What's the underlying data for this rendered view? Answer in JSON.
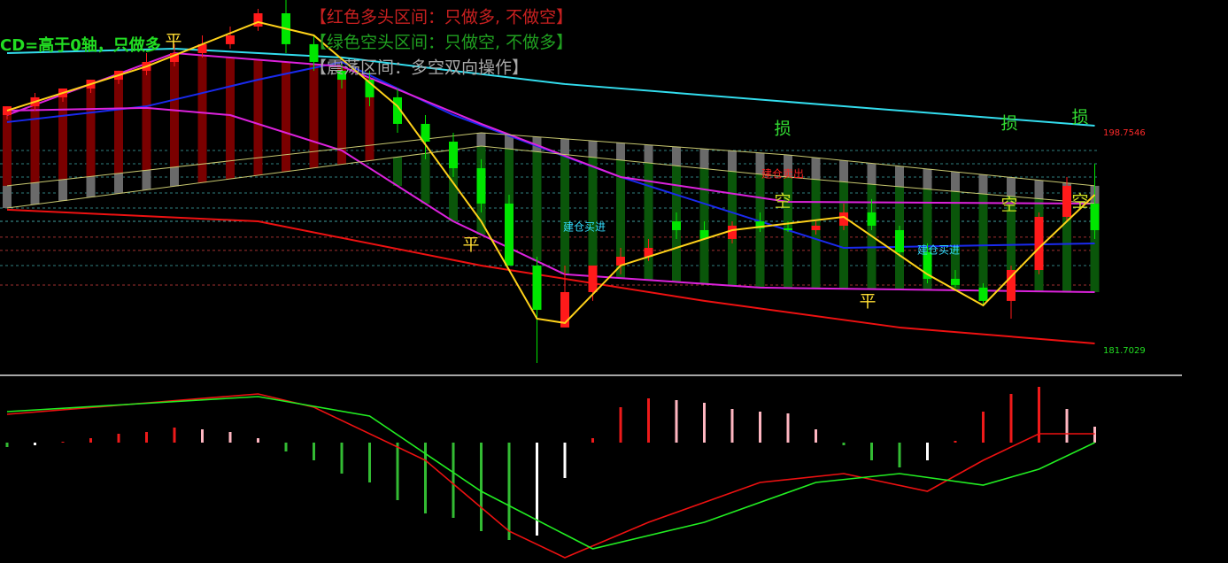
{
  "chart_data": [
    {
      "type": "candlestick",
      "notes": [
        "【红色多头区间：只做多, 不做空】",
        "【绿色空头区间：只做空, 不做多】",
        "【震荡区间：多空双向操作】"
      ],
      "note_colors": [
        "#c82020",
        "#20a020",
        "#a8a8a8"
      ],
      "side_text": "CD=高于0轴，只做多",
      "side_color": "#22dd22",
      "open": [
        200.14,
        200.83,
        201.53,
        202.22,
        202.91,
        203.61,
        204.3,
        204.99,
        205.69,
        207.07,
        208.11,
        205.69,
        203.61,
        202.91,
        201.53,
        199.45,
        198.06,
        195.98,
        193.21,
        188.36,
        183.51,
        186.28,
        188.36,
        189.05,
        191.82,
        191.13,
        190.44,
        191.82,
        191.27,
        191.13,
        191.48,
        192.52,
        191.13,
        189.4,
        187.32,
        186.63,
        185.59,
        188.01,
        192.17,
        193.21
      ],
      "high": [
        200.83,
        201.87,
        202.22,
        202.91,
        203.61,
        204.99,
        205.69,
        206.38,
        207.07,
        208.46,
        209.15,
        206.38,
        204.3,
        203.61,
        202.22,
        200.14,
        198.75,
        196.68,
        193.9,
        189.05,
        188.36,
        188.36,
        189.74,
        190.44,
        192.52,
        191.82,
        191.82,
        192.52,
        191.82,
        191.82,
        193.21,
        193.56,
        191.48,
        190.09,
        188.01,
        186.97,
        188.36,
        192.52,
        195.29,
        196.33
      ],
      "low": [
        199.79,
        200.49,
        201.18,
        201.87,
        202.57,
        203.26,
        203.95,
        204.65,
        205.34,
        206.73,
        204.99,
        203.61,
        202.22,
        200.83,
        198.75,
        196.68,
        195.29,
        192.52,
        188.36,
        180.73,
        183.51,
        185.59,
        187.67,
        188.71,
        190.44,
        190.44,
        190.09,
        190.99,
        190.99,
        190.78,
        191.13,
        191.13,
        189.05,
        186.97,
        186.63,
        185.24,
        184.2,
        187.67,
        191.82,
        190.44
      ],
      "close": [
        200.83,
        201.53,
        202.22,
        202.91,
        203.61,
        204.3,
        204.99,
        205.69,
        206.38,
        208.11,
        205.69,
        204.3,
        202.91,
        201.53,
        199.45,
        198.06,
        195.98,
        193.21,
        188.36,
        184.89,
        186.28,
        188.36,
        189.05,
        189.74,
        191.13,
        190.44,
        191.48,
        191.27,
        191.13,
        191.48,
        192.52,
        191.48,
        189.4,
        187.32,
        186.84,
        185.59,
        188.01,
        192.17,
        194.6,
        191.13
      ],
      "up_color": "#ff1a1a",
      "down_color": "#00e600",
      "ylim": [
        180.04,
        209.15
      ],
      "yticks": [
        198.7546,
        181.7029
      ],
      "ytick_colors": [
        "#ff2a2a",
        "#22dd22"
      ],
      "levels": [
        197.37,
        196.33,
        195.29,
        194.04,
        192.86,
        191.82,
        190.58,
        189.54,
        188.36,
        186.83
      ],
      "level_colors": [
        "#2f7f7f",
        "#2f7f7f",
        "#2f7f7f",
        "#2f7f7f",
        "#2f7f7f",
        "#3fa0a0",
        "#a03030",
        "#a03030",
        "#2f7f7f",
        "#a03030"
      ],
      "zone_colors": [
        "#7a0000",
        "#0a560a",
        "#6a6a6a"
      ],
      "lines": [
        {
          "color": "#33ddee",
          "x": [
            0,
            6,
            12,
            20,
            30,
            39
          ],
          "values": [
            204.99,
            205.34,
            204.65,
            202.57,
            200.83,
            199.31
          ]
        },
        {
          "color": "#ee1111",
          "x": [
            0,
            9,
            17,
            25,
            32,
            39
          ],
          "values": [
            192.73,
            191.82,
            188.36,
            185.59,
            183.51,
            182.26
          ]
        },
        {
          "color": "#1a2aee",
          "x": [
            0,
            5,
            9,
            12,
            16,
            22,
            27,
            30,
            39
          ],
          "values": [
            199.59,
            200.83,
            202.91,
            204.3,
            200.14,
            195.29,
            191.82,
            189.74,
            190.09
          ]
        },
        {
          "color": "#dd22dd",
          "x": [
            0,
            6,
            12,
            17,
            22,
            28,
            39
          ],
          "values": [
            200.14,
            204.99,
            203.95,
            199.45,
            195.29,
            193.35,
            193.21
          ]
        },
        {
          "color": "#dd22dd",
          "x": [
            0,
            5,
            8,
            12,
            16,
            20,
            27,
            39
          ],
          "values": [
            200.49,
            200.7,
            200.14,
            197.37,
            191.82,
            187.67,
            186.63,
            186.28
          ]
        },
        {
          "color": "#c8c870",
          "x": [
            0,
            17,
            28,
            39
          ],
          "values": [
            194.6,
            198.75,
            197.02,
            194.6
          ]
        },
        {
          "color": "#c8c870",
          "x": [
            0,
            17,
            28,
            39
          ],
          "values": [
            192.86,
            197.71,
            195.29,
            193.21
          ]
        },
        {
          "color": "#ffd21a",
          "x": [
            0,
            5,
            9,
            11,
            14,
            17,
            19,
            20,
            22,
            26,
            30,
            33,
            35,
            37,
            39
          ],
          "values": [
            200.49,
            203.95,
            207.42,
            206.38,
            200.83,
            191.82,
            184.2,
            183.86,
            188.36,
            191.13,
            192.17,
            187.67,
            185.24,
            189.74,
            193.9
          ]
        }
      ],
      "annotations": [
        {
          "text": "损",
          "color": "#33dd33"
        },
        {
          "text": "损",
          "color": "#33dd33"
        },
        {
          "text": "损",
          "color": "#33dd33"
        },
        {
          "text": "平",
          "color": "#ffdd33"
        },
        {
          "text": "平",
          "color": "#ffdd33"
        },
        {
          "text": "平",
          "color": "#ffdd33"
        },
        {
          "text": "空",
          "color": "#ccdd22"
        },
        {
          "text": "空",
          "color": "#ccdd22"
        },
        {
          "text": "空",
          "color": "#ccdd22"
        },
        {
          "text": "建仓买进",
          "color": "#33ddff"
        },
        {
          "text": "建仓买进",
          "color": "#33ddff"
        },
        {
          "text": "建仓卖出",
          "color": "#ff2222"
        }
      ]
    },
    {
      "type": "bar",
      "values": [
        -0.05,
        -0.03,
        0.01,
        0.05,
        0.1,
        0.12,
        0.17,
        0.15,
        0.12,
        0.05,
        -0.1,
        -0.2,
        -0.35,
        -0.45,
        -0.65,
        -0.8,
        -0.85,
        -1.0,
        -1.1,
        -1.05,
        -0.4,
        0.05,
        0.4,
        0.5,
        0.48,
        0.45,
        0.38,
        0.35,
        0.33,
        0.15,
        -0.03,
        -0.2,
        -0.28,
        -0.2,
        0.02,
        0.35,
        0.55,
        0.63,
        0.38,
        0.18
      ],
      "colors": [
        "#ee1a1a",
        "#ffb6c1",
        "#33bb33",
        "#ffffff"
      ],
      "ylim": [
        -1.36,
        0.75
      ],
      "lines": [
        {
          "color": "#ee1111",
          "x": [
            0,
            9,
            11,
            15,
            18,
            20,
            23,
            27,
            30,
            33,
            35,
            37,
            39
          ],
          "values": [
            0.32,
            0.55,
            0.4,
            -0.2,
            -1.0,
            -1.3,
            -0.9,
            -0.45,
            -0.35,
            -0.55,
            -0.2,
            0.1,
            0.1
          ]
        },
        {
          "color": "#22ee22",
          "x": [
            0,
            9,
            13,
            17,
            21,
            25,
            29,
            32,
            35,
            37,
            39
          ],
          "values": [
            0.35,
            0.52,
            0.3,
            -0.55,
            -1.2,
            -0.9,
            -0.45,
            -0.35,
            -0.48,
            -0.3,
            0.0
          ]
        }
      ]
    }
  ]
}
